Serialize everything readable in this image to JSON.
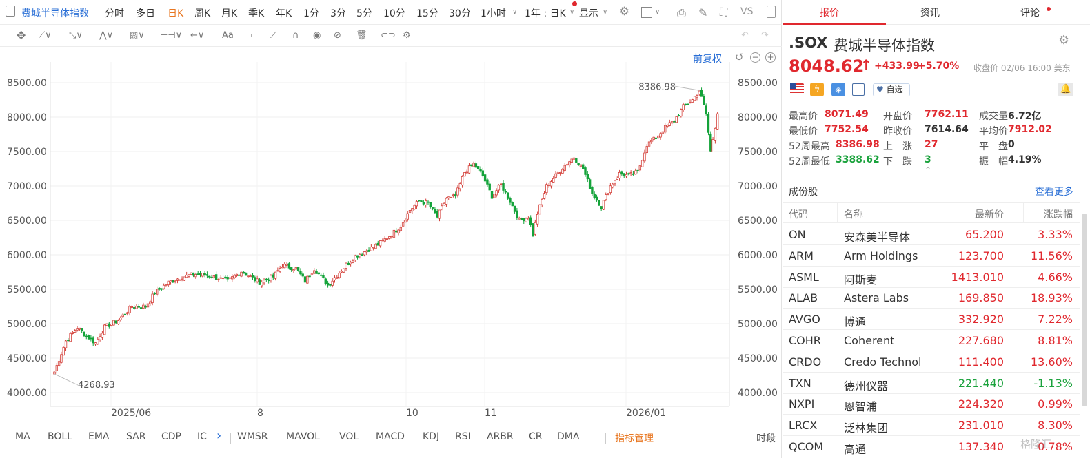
{
  "toolbar": {
    "title": "费城半导体指数",
    "periods": [
      "分时",
      "多日",
      "日K",
      "周K",
      "月K",
      "季K",
      "年K",
      "1分",
      "3分",
      "5分",
      "10分",
      "15分",
      "30分",
      "1小时"
    ],
    "active_period": "日K",
    "range": "1年 : 日K",
    "display": "显示",
    "vs": "VS"
  },
  "chart_header": {
    "adjust": "前复权"
  },
  "indicators": {
    "items": [
      "MA",
      "BOLL",
      "EMA",
      "SAR",
      "CDP",
      "IC",
      "WMSR",
      "MAVOL",
      "VOL",
      "MACD",
      "KDJ",
      "RSI",
      "ARBR",
      "CR",
      "DMA"
    ],
    "manage": "指标管理",
    "period": "时段"
  },
  "tabs": [
    "报价",
    "资讯",
    "评论"
  ],
  "quote": {
    "symbol": ".SOX",
    "name": "费城半导体指数",
    "price": "8048.62",
    "arrow": "↑",
    "change": "+433.99",
    "pct": "+5.70%",
    "close_info": "收盘价 02/06 16:00 美东",
    "watch": "自选",
    "stats": [
      {
        "label": "最高价",
        "value": "8071.49",
        "color": "red"
      },
      {
        "label": "开盘价",
        "value": "7762.11",
        "color": "red"
      },
      {
        "label": "成交量",
        "value": "6.72亿",
        "color": "dark"
      },
      {
        "label": "最低价",
        "value": "7752.54",
        "color": "red"
      },
      {
        "label": "昨收价",
        "value": "7614.64",
        "color": "dark"
      },
      {
        "label": "平均价",
        "value": "7912.02",
        "color": "red"
      },
      {
        "label": "52周最高",
        "value": "8386.98",
        "color": "red"
      },
      {
        "label": "上　涨",
        "value": "27",
        "color": "red"
      },
      {
        "label": "平　盘",
        "value": "0",
        "color": "dark"
      },
      {
        "label": "52周最低",
        "value": "3388.62",
        "color": "grn"
      },
      {
        "label": "下　跌",
        "value": "3",
        "color": "grn"
      },
      {
        "label": "振　幅",
        "value": "4.19%",
        "color": "dark"
      }
    ]
  },
  "components": {
    "title": "成份股",
    "more": "查看更多",
    "headers": [
      "代码",
      "名称",
      "最新价",
      "涨跌幅"
    ],
    "rows": [
      {
        "code": "ON",
        "name": "安森美半导体",
        "price": "65.200",
        "change": "3.33%",
        "up": true
      },
      {
        "code": "ARM",
        "name": "Arm Holdings",
        "price": "123.700",
        "change": "11.56%",
        "up": true
      },
      {
        "code": "ASML",
        "name": "阿斯麦",
        "price": "1413.010",
        "change": "4.66%",
        "up": true
      },
      {
        "code": "ALAB",
        "name": "Astera Labs",
        "price": "169.850",
        "change": "18.93%",
        "up": true
      },
      {
        "code": "AVGO",
        "name": "博通",
        "price": "332.920",
        "change": "7.22%",
        "up": true
      },
      {
        "code": "COHR",
        "name": "Coherent",
        "price": "227.680",
        "change": "8.81%",
        "up": true
      },
      {
        "code": "CRDO",
        "name": "Credo Technol",
        "price": "111.400",
        "change": "13.60%",
        "up": true
      },
      {
        "code": "TXN",
        "name": "德州仪器",
        "price": "221.440",
        "change": "-1.13%",
        "up": false
      },
      {
        "code": "NXPI",
        "name": "恩智浦",
        "price": "224.320",
        "change": "0.99%",
        "up": true
      },
      {
        "code": "LRCX",
        "name": "泛林集团",
        "price": "231.010",
        "change": "8.30%",
        "up": true
      },
      {
        "code": "QCOM",
        "name": "高通",
        "price": "137.340",
        "change": "0.78%",
        "up": true
      }
    ],
    "watermark": "格隆汇"
  },
  "chart_data": {
    "type": "candlestick",
    "ylim": [
      3800,
      8800
    ],
    "yticks": [
      4000,
      4500,
      5000,
      5500,
      6000,
      6500,
      7000,
      7500,
      8000,
      8500
    ],
    "ytick_labels": [
      "4000.00",
      "4500.00",
      "5000.00",
      "5500.00",
      "6000.00",
      "6500.00",
      "7000.00",
      "7500.00",
      "8000.00",
      "8500.00"
    ],
    "xlabels": [
      "2025/06",
      "8",
      "10",
      "11",
      "2026/01"
    ],
    "annotations": {
      "max": "8386.98",
      "min": "4268.93"
    },
    "anchors": [
      [
        0,
        4300
      ],
      [
        5,
        4750
      ],
      [
        10,
        4950
      ],
      [
        14,
        4820
      ],
      [
        18,
        4720
      ],
      [
        22,
        4950
      ],
      [
        28,
        5050
      ],
      [
        34,
        5250
      ],
      [
        40,
        5250
      ],
      [
        44,
        5450
      ],
      [
        50,
        5600
      ],
      [
        56,
        5680
      ],
      [
        62,
        5720
      ],
      [
        68,
        5700
      ],
      [
        76,
        5620
      ],
      [
        82,
        5760
      ],
      [
        90,
        5600
      ],
      [
        96,
        5680
      ],
      [
        100,
        5850
      ],
      [
        106,
        5800
      ],
      [
        110,
        5620
      ],
      [
        114,
        5800
      ],
      [
        120,
        5560
      ],
      [
        126,
        5780
      ],
      [
        132,
        5980
      ],
      [
        138,
        6080
      ],
      [
        142,
        6150
      ],
      [
        148,
        6300
      ],
      [
        152,
        6420
      ],
      [
        156,
        6650
      ],
      [
        160,
        6780
      ],
      [
        164,
        6750
      ],
      [
        168,
        6550
      ],
      [
        172,
        6820
      ],
      [
        176,
        6850
      ],
      [
        180,
        7200
      ],
      [
        184,
        7320
      ],
      [
        188,
        7150
      ],
      [
        192,
        6850
      ],
      [
        196,
        7020
      ],
      [
        200,
        6780
      ],
      [
        204,
        6500
      ],
      [
        208,
        6550
      ],
      [
        210,
        6300
      ],
      [
        212,
        6600
      ],
      [
        216,
        7000
      ],
      [
        220,
        7150
      ],
      [
        224,
        7300
      ],
      [
        228,
        7420
      ],
      [
        232,
        7250
      ],
      [
        236,
        6900
      ],
      [
        240,
        6700
      ],
      [
        244,
        7000
      ],
      [
        248,
        7180
      ],
      [
        252,
        7150
      ],
      [
        256,
        7200
      ],
      [
        260,
        7600
      ],
      [
        264,
        7700
      ],
      [
        268,
        7850
      ],
      [
        272,
        7950
      ],
      [
        276,
        8150
      ],
      [
        280,
        8250
      ],
      [
        283,
        8386.98
      ],
      [
        286,
        8050
      ],
      [
        288,
        7500
      ],
      [
        291,
        8048.62
      ]
    ]
  }
}
